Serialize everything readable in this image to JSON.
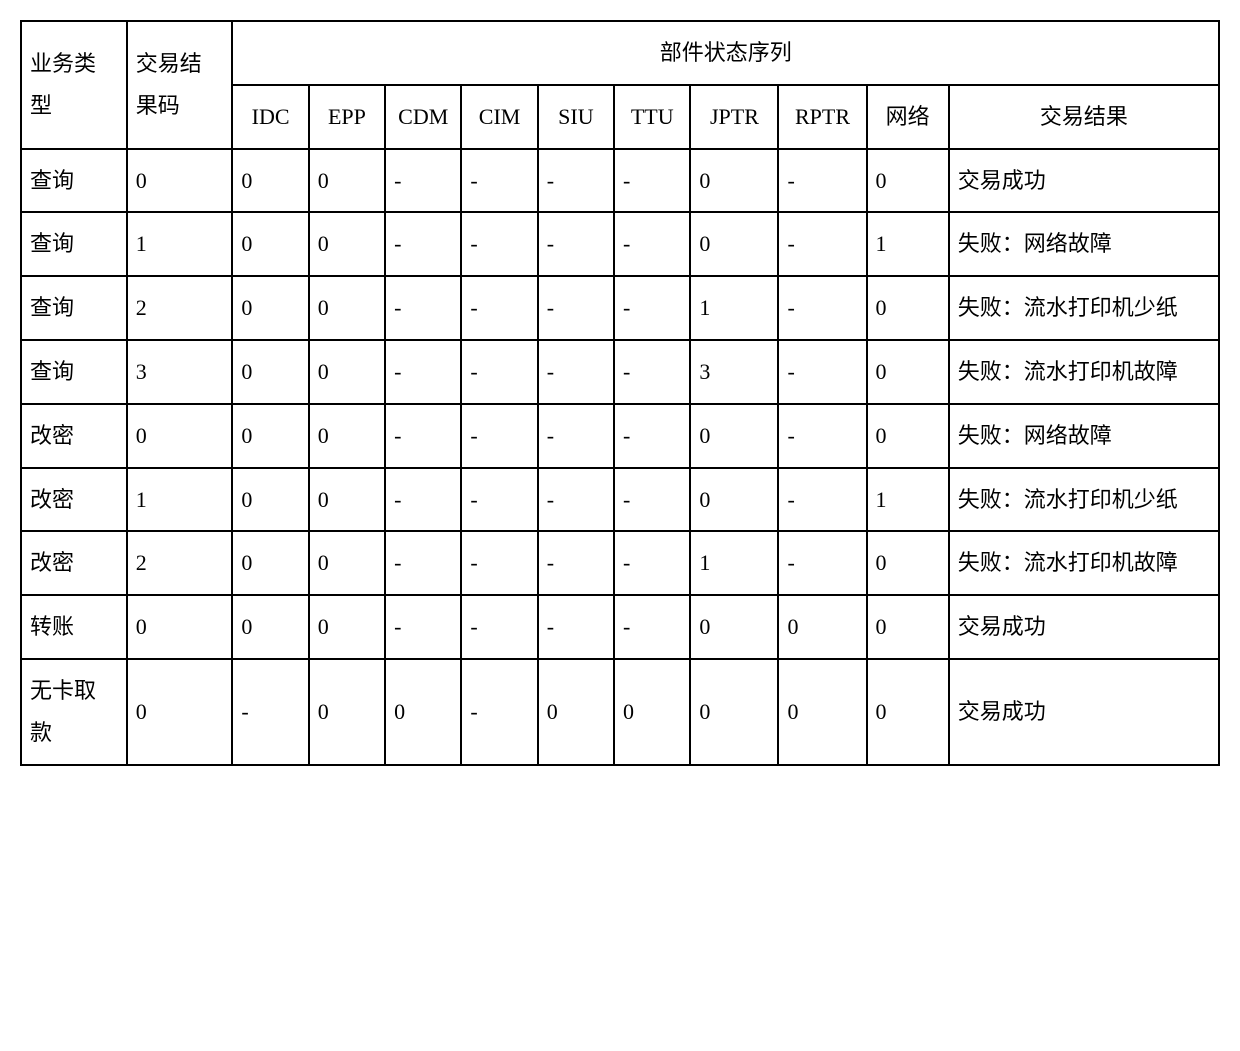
{
  "table": {
    "border_color": "#000000",
    "background_color": "#ffffff",
    "font_family": "SimSun",
    "cell_fontsize_pt": 16,
    "header": {
      "group_title": "部件状态序列",
      "col_business_type": "业务类型",
      "col_trade_code": "交易结果码",
      "components": [
        "IDC",
        "EPP",
        "CDM",
        "CIM",
        "SIU",
        "TTU",
        "JPTR",
        "RPTR",
        "网络"
      ],
      "col_trade_result": "交易结果"
    },
    "rows": [
      {
        "type": "查询",
        "code": "0",
        "vals": [
          "0",
          "0",
          "-",
          "-",
          "-",
          "-",
          "0",
          "-",
          "0"
        ],
        "result": "交易成功"
      },
      {
        "type": "查询",
        "code": "1",
        "vals": [
          "0",
          "0",
          "-",
          "-",
          "-",
          "-",
          "0",
          "-",
          "1"
        ],
        "result": "失败：网络故障"
      },
      {
        "type": "查询",
        "code": "2",
        "vals": [
          "0",
          "0",
          "-",
          "-",
          "-",
          "-",
          "1",
          "-",
          "0"
        ],
        "result": "失败：流水打印机少纸"
      },
      {
        "type": "查询",
        "code": "3",
        "vals": [
          "0",
          "0",
          "-",
          "-",
          "-",
          "-",
          "3",
          "-",
          "0"
        ],
        "result": "失败：流水打印机故障"
      },
      {
        "type": "改密",
        "code": "0",
        "vals": [
          "0",
          "0",
          "-",
          "-",
          "-",
          "-",
          "0",
          "-",
          "0"
        ],
        "result": "失败：网络故障"
      },
      {
        "type": "改密",
        "code": "1",
        "vals": [
          "0",
          "0",
          "-",
          "-",
          "-",
          "-",
          "0",
          "-",
          "1"
        ],
        "result": "失败：流水打印机少纸"
      },
      {
        "type": "改密",
        "code": "2",
        "vals": [
          "0",
          "0",
          "-",
          "-",
          "-",
          "-",
          "1",
          "-",
          "0"
        ],
        "result": "失败：流水打印机故障"
      },
      {
        "type": "转账",
        "code": "0",
        "vals": [
          "0",
          "0",
          "-",
          "-",
          "-",
          "-",
          "0",
          "0",
          "0"
        ],
        "result": "交易成功"
      },
      {
        "type": "无卡取款",
        "code": "0",
        "vals": [
          "-",
          "0",
          "0",
          "-",
          "0",
          "0",
          "0",
          "0",
          "0"
        ],
        "result": "交易成功"
      }
    ]
  }
}
